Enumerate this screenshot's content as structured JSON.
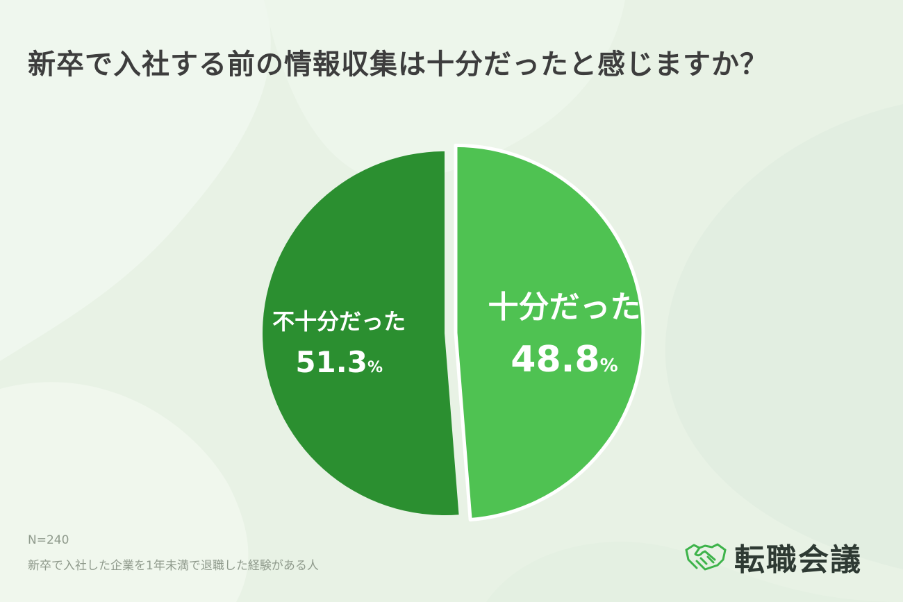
{
  "title": "新卒で入社する前の情報収集は十分だったと感じますか？",
  "chart_data": {
    "type": "pie",
    "title": "新卒で入社する前の情報収集は十分だったと感じますか？",
    "slices": [
      {
        "label": "十分だった",
        "value": 48.8,
        "unit": "%",
        "color": "#4fc252",
        "exploded": true
      },
      {
        "label": "不十分だった",
        "value": 51.3,
        "unit": "%",
        "color": "#2b8f30",
        "exploded": false
      }
    ],
    "start_angle_deg": 0,
    "direction": "clockwise",
    "legend": "none"
  },
  "notes": {
    "sample_size": "N=240",
    "description": "新卒で入社した企業を1年未満で退職した経験がある人"
  },
  "logo": {
    "text": "転職会議",
    "icon": "handshake-icon",
    "color": "#3db34a"
  },
  "colors": {
    "background": "#e9f3e6",
    "title": "#3d3d3d"
  }
}
